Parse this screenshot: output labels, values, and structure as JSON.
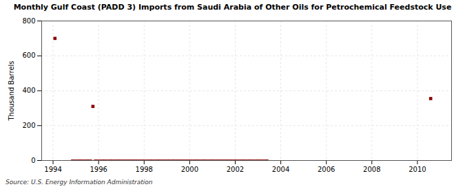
{
  "chart_data": {
    "type": "scatter",
    "title": "Monthly Gulf Coast (PADD 3) Imports from Saudi Arabia of Other Oils for Petrochemical Feedstock Use",
    "ylabel": "Thousand Barrels",
    "caption": "Source: U.S. Energy Information Administration",
    "xlim": [
      1993.5,
      2011.5
    ],
    "ylim": [
      0,
      800
    ],
    "xticks": [
      1994,
      1996,
      1998,
      2000,
      2002,
      2004,
      2006,
      2008,
      2010
    ],
    "yticks": [
      0,
      200,
      400,
      600,
      800
    ],
    "grid": true,
    "series": [
      {
        "color": "#8B0000",
        "marker": "square",
        "x": [
          1994.833,
          1994.917,
          1995.0,
          1995.083,
          1995.167,
          1995.25,
          1995.333,
          1995.417,
          1995.5,
          1995.583,
          1995.667,
          1995.833,
          1995.917,
          1996.0,
          1996.083,
          1996.167,
          1996.25,
          1996.333,
          1996.417,
          1996.5,
          1996.583,
          1996.667,
          1996.75,
          1996.833,
          1996.917,
          1997.0,
          1997.083,
          1997.167,
          1997.25,
          1997.333,
          1997.417,
          1997.5,
          1997.583,
          1997.667,
          1997.75,
          1997.833,
          1997.917,
          1998.0,
          1998.083,
          1998.167,
          1998.25,
          1998.333,
          1998.417,
          1998.5,
          1998.583,
          1998.667,
          1998.75,
          1998.833,
          1998.917,
          1999.0,
          1999.083,
          1999.167,
          1999.25,
          1999.333,
          1999.417,
          1999.5,
          1999.583,
          1999.667,
          1999.75,
          1999.833,
          1999.917,
          2000.0,
          2000.083,
          2000.167,
          2000.25,
          2000.333,
          2000.417,
          2000.5,
          2000.583,
          2000.667,
          2000.75,
          2000.833,
          2000.917,
          2001.0,
          2001.083,
          2001.167,
          2001.25,
          2001.333,
          2001.417,
          2001.5,
          2001.583,
          2001.667,
          2001.75,
          2001.833,
          2001.917,
          2002.0,
          2002.083,
          2002.167,
          2002.25,
          2002.333,
          2002.417,
          2002.5,
          2002.583,
          2002.667,
          2002.75,
          2002.833,
          2002.917,
          2003.0,
          2003.083,
          2003.167,
          2003.25,
          2003.333,
          2003.417
        ],
        "values": [
          0,
          0,
          0,
          0,
          0,
          0,
          0,
          0,
          0,
          0,
          0,
          0,
          0,
          0,
          0,
          0,
          0,
          0,
          0,
          0,
          0,
          0,
          0,
          0,
          0,
          0,
          0,
          0,
          0,
          0,
          0,
          0,
          0,
          0,
          0,
          0,
          0,
          0,
          0,
          0,
          0,
          0,
          0,
          0,
          0,
          0,
          0,
          0,
          0,
          0,
          0,
          0,
          0,
          0,
          0,
          0,
          0,
          0,
          0,
          0,
          0,
          0,
          0,
          0,
          0,
          0,
          0,
          0,
          0,
          0,
          0,
          0,
          0,
          0,
          0,
          0,
          0,
          0,
          0,
          0,
          0,
          0,
          0,
          0,
          0,
          0,
          0,
          0,
          0,
          0,
          0,
          0,
          0,
          0,
          0,
          0,
          0,
          0,
          0,
          0,
          0,
          0,
          0
        ]
      },
      {
        "color": "#8B0000",
        "marker": "square",
        "x": [
          1994.083,
          1995.75,
          2010.583
        ],
        "values": [
          700,
          310,
          355
        ]
      }
    ]
  }
}
